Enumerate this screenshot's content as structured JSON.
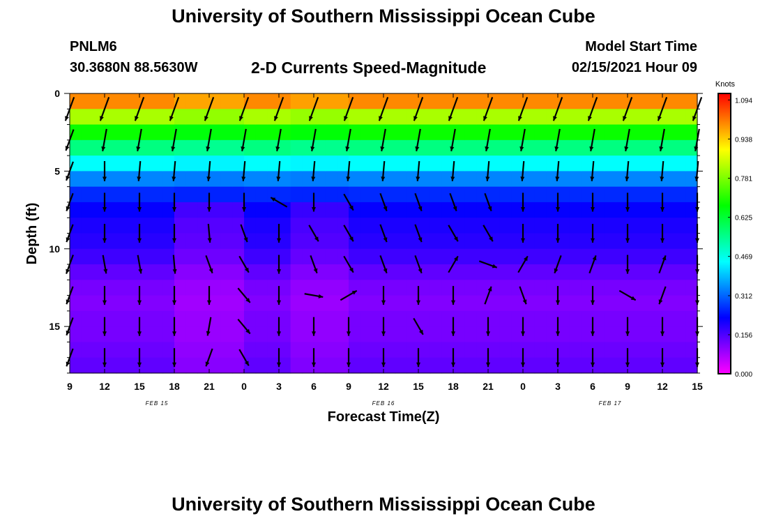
{
  "header": {
    "title": "University of Southern Mississippi Ocean Cube",
    "station": "PNLM6",
    "coords": "30.3680N 88.5630W",
    "plot_title": "2-D Currents Speed-Magnitude",
    "model_start_label": "Model Start Time",
    "model_start_value": "02/15/2021 Hour 09"
  },
  "footer": {
    "title": "University of Southern Mississippi Ocean Cube"
  },
  "chart_data": {
    "type": "heatmap",
    "title": "2-D Currents Speed-Magnitude",
    "xlabel": "Forecast Time(Z)",
    "ylabel": "Depth (ft)",
    "x_tick_labels": [
      "9",
      "12",
      "15",
      "18",
      "21",
      "0",
      "3",
      "6",
      "9",
      "12",
      "15",
      "18",
      "21",
      "0",
      "3",
      "6",
      "9",
      "12",
      "15"
    ],
    "x_range_hours": [
      0,
      54
    ],
    "date_labels": [
      {
        "text": "FEB 15",
        "hour": 7.5
      },
      {
        "text": "FEB 16",
        "hour": 27
      },
      {
        "text": "FEB 17",
        "hour": 46.5
      }
    ],
    "y_ticks": [
      0,
      5,
      10,
      15
    ],
    "y_range_ft": [
      0,
      18
    ],
    "y_inverted": true,
    "colorbar": {
      "units": "Knots",
      "tick_labels": [
        "1.094",
        "0.938",
        "0.781",
        "0.625",
        "0.469",
        "0.312",
        "0.156",
        "0.000"
      ],
      "tick_values": [
        1.094,
        0.938,
        0.781,
        0.625,
        0.469,
        0.312,
        0.156,
        0.0
      ],
      "range": [
        0,
        1.12
      ],
      "colors": [
        "#ff00ff",
        "#8000ff",
        "#0000ff",
        "#0080ff",
        "#00ffff",
        "#00ff80",
        "#00ff00",
        "#80ff00",
        "#ffff00",
        "#ff8000",
        "#ff0000"
      ]
    },
    "depths_ft": [
      0,
      1,
      2,
      3,
      4,
      5,
      6,
      7,
      8,
      9,
      10,
      11,
      12,
      13,
      14,
      15,
      16,
      17,
      18
    ],
    "depth_profile_knots": [
      1.0,
      0.82,
      0.68,
      0.56,
      0.45,
      0.34,
      0.26,
      0.22,
      0.2,
      0.19,
      0.17,
      0.14,
      0.12,
      0.11,
      0.12,
      0.12,
      0.13,
      0.14,
      0.14
    ],
    "column_modulation": [
      {
        "hour_start": 9,
        "hour_end": 15,
        "factor": 0.75
      },
      {
        "hour_start": 19,
        "hour_end": 24,
        "factor": 0.8
      }
    ],
    "vector_hours": [
      0,
      3,
      6,
      9,
      12,
      15,
      18,
      21,
      24,
      27,
      30,
      33,
      36,
      39,
      42,
      45,
      48,
      51,
      54
    ],
    "vector_depths_ft": [
      1,
      3,
      5,
      7,
      9,
      11,
      13,
      15,
      17
    ],
    "vector_directions_deg": [
      [
        200,
        200,
        200,
        200,
        200,
        200,
        200,
        200,
        200
      ],
      [
        200,
        190,
        180,
        180,
        180,
        170,
        180,
        180,
        180
      ],
      [
        200,
        190,
        185,
        180,
        180,
        170,
        180,
        180,
        180
      ],
      [
        200,
        190,
        185,
        180,
        180,
        175,
        180,
        180,
        180
      ],
      [
        200,
        190,
        185,
        180,
        175,
        160,
        180,
        190,
        200
      ],
      [
        200,
        190,
        185,
        180,
        160,
        150,
        140,
        140,
        150
      ],
      [
        200,
        190,
        185,
        300,
        180,
        180,
        180,
        180,
        180
      ],
      [
        200,
        190,
        185,
        180,
        150,
        160,
        100,
        180,
        180
      ],
      [
        200,
        190,
        185,
        150,
        150,
        150,
        60,
        180,
        180
      ],
      [
        200,
        190,
        185,
        160,
        160,
        160,
        180,
        180,
        180
      ],
      [
        200,
        190,
        185,
        160,
        160,
        160,
        180,
        150,
        180
      ],
      [
        200,
        190,
        185,
        160,
        150,
        30,
        180,
        180,
        180
      ],
      [
        200,
        190,
        185,
        160,
        150,
        110,
        20,
        180,
        180
      ],
      [
        200,
        190,
        185,
        180,
        180,
        30,
        160,
        180,
        180
      ],
      [
        200,
        190,
        185,
        180,
        180,
        200,
        180,
        180,
        180
      ],
      [
        200,
        190,
        185,
        180,
        180,
        20,
        180,
        180,
        180
      ],
      [
        200,
        190,
        185,
        180,
        180,
        180,
        120,
        180,
        180
      ],
      [
        200,
        190,
        185,
        180,
        180,
        20,
        200,
        180,
        180
      ],
      [
        200,
        190,
        185,
        180,
        180,
        180,
        180,
        180,
        180
      ]
    ],
    "vector_magnitudes_rel": [
      [
        1.0,
        0.8,
        0.6,
        0.5,
        0.5,
        0.6,
        0.5,
        0.5,
        0.5
      ],
      [
        1.0,
        0.8,
        0.6,
        0.5,
        0.5,
        0.5,
        0.5,
        0.5,
        0.5
      ],
      [
        1.0,
        0.8,
        0.6,
        0.5,
        0.5,
        0.5,
        0.5,
        0.5,
        0.5
      ],
      [
        1.0,
        0.8,
        0.6,
        0.5,
        0.5,
        0.5,
        0.5,
        0.5,
        0.5
      ],
      [
        1.0,
        0.8,
        0.6,
        0.5,
        0.5,
        0.5,
        0.5,
        0.5,
        0.5
      ],
      [
        1.0,
        0.8,
        0.6,
        0.5,
        0.5,
        0.5,
        0.5,
        0.5,
        0.5
      ],
      [
        1.0,
        0.8,
        0.6,
        0.5,
        0.5,
        0.5,
        0.5,
        0.5,
        0.5
      ],
      [
        1.0,
        0.8,
        0.6,
        0.5,
        0.5,
        0.5,
        0.5,
        0.5,
        0.5
      ],
      [
        1.0,
        0.8,
        0.6,
        0.5,
        0.5,
        0.5,
        0.5,
        0.5,
        0.5
      ],
      [
        1.0,
        0.8,
        0.6,
        0.5,
        0.5,
        0.5,
        0.5,
        0.5,
        0.5
      ],
      [
        1.0,
        0.8,
        0.6,
        0.5,
        0.5,
        0.5,
        0.5,
        0.5,
        0.5
      ],
      [
        1.0,
        0.8,
        0.6,
        0.5,
        0.5,
        0.5,
        0.5,
        0.5,
        0.5
      ],
      [
        1.0,
        0.8,
        0.6,
        0.5,
        0.5,
        0.5,
        0.5,
        0.5,
        0.5
      ],
      [
        1.0,
        0.8,
        0.6,
        0.5,
        0.5,
        0.5,
        0.5,
        0.5,
        0.5
      ],
      [
        1.0,
        0.8,
        0.6,
        0.5,
        0.5,
        0.5,
        0.5,
        0.5,
        0.5
      ],
      [
        1.0,
        0.8,
        0.6,
        0.5,
        0.5,
        0.5,
        0.5,
        0.5,
        0.5
      ],
      [
        1.0,
        0.8,
        0.6,
        0.5,
        0.5,
        0.5,
        0.5,
        0.5,
        0.5
      ],
      [
        1.0,
        0.8,
        0.6,
        0.5,
        0.5,
        0.5,
        0.5,
        0.5,
        0.5
      ],
      [
        1.0,
        0.8,
        0.6,
        0.5,
        0.5,
        0.5,
        0.5,
        0.5,
        0.5
      ]
    ]
  }
}
